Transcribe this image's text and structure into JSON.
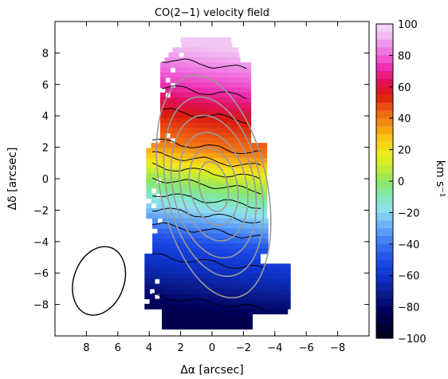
{
  "chart_data": {
    "type": "heatmap",
    "title": "CO(2−1) velocity field",
    "xlabel": "Δα [arcsec]",
    "ylabel": "Δδ [arcsec]",
    "xlim": [
      10,
      -10
    ],
    "ylim": [
      -10,
      10
    ],
    "xticks": [
      8,
      6,
      4,
      2,
      0,
      -2,
      -4,
      -6,
      -8
    ],
    "xtick_labels": [
      "8",
      "6",
      "4",
      "2",
      "0",
      "−2",
      "−4",
      "−6",
      "−8"
    ],
    "yticks": [
      -8,
      -6,
      -4,
      -2,
      0,
      2,
      4,
      6,
      8
    ],
    "ytick_labels": [
      "−8",
      "−6",
      "−4",
      "−2",
      "0",
      "2",
      "4",
      "6",
      "8"
    ],
    "colorbar": {
      "label": "km s⁻¹",
      "range": [
        -100,
        100
      ],
      "ticks": [
        100,
        80,
        60,
        40,
        20,
        0,
        -20,
        -40,
        -60,
        -80,
        -100
      ],
      "tick_labels": [
        "100",
        "80",
        "60",
        "40",
        "20",
        "0",
        "−20",
        "−40",
        "−60",
        "−80",
        "−100"
      ],
      "colors": [
        "#000015",
        "#00003a",
        "#00005e",
        "#0a1a8a",
        "#0d2dbe",
        "#1540dc",
        "#2b60ee",
        "#4a88f5",
        "#6fb4f8",
        "#8fe0f0",
        "#7fe8b0",
        "#8fe860",
        "#c8ec30",
        "#f0e81a",
        "#f8c515",
        "#f59015",
        "#ee5a10",
        "#d81a10",
        "#e0105a",
        "#ee30b4",
        "#f070e0",
        "#f0b0f0",
        "#f6e0fa"
      ]
    },
    "velocity_field": {
      "description_rows_dec": [
        8.5,
        6,
        4,
        2,
        0,
        -2,
        -4,
        -6,
        -8.5
      ],
      "velocity_kms": [
        95,
        75,
        55,
        40,
        5,
        -20,
        -50,
        -65,
        -85
      ]
    },
    "beam": {
      "major_arcsec": 4.5,
      "minor_arcsec": 3.2,
      "center": [
        7.2,
        -6.5
      ]
    },
    "grid": false
  }
}
